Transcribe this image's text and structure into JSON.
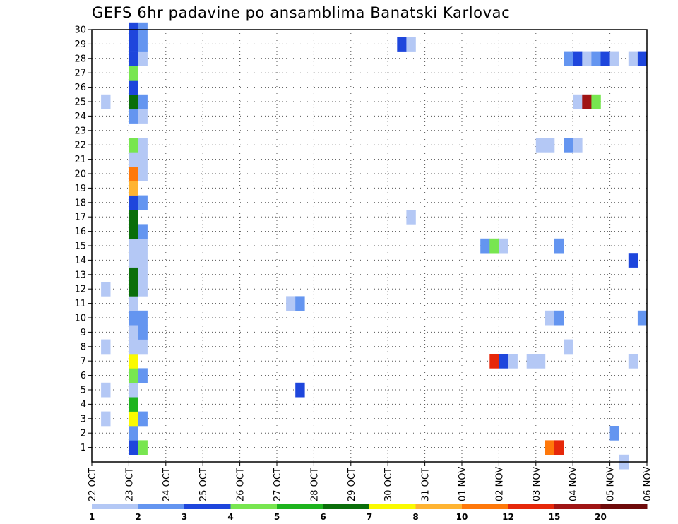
{
  "chart_data": {
    "type": "heatmap",
    "title": "GEFS 6hr padavine po ansamblima Banatski Karlovac",
    "x_tick_labels": [
      "22 OCT",
      "23 OCT",
      "24 OCT",
      "25 OCT",
      "26 OCT",
      "27 OCT",
      "28 OCT",
      "29 OCT",
      "30 OCT",
      "31 OCT",
      "01 NOV",
      "02 NOV",
      "03 NOV",
      "04 NOV",
      "05 NOV",
      "06 NOV"
    ],
    "x_range_days": [
      0,
      15
    ],
    "y_tick_labels": [
      "1",
      "2",
      "3",
      "4",
      "5",
      "6",
      "7",
      "8",
      "9",
      "10",
      "11",
      "12",
      "13",
      "14",
      "15",
      "16",
      "17",
      "18",
      "19",
      "20",
      "21",
      "22",
      "23",
      "24",
      "25",
      "26",
      "27",
      "28",
      "29",
      "30"
    ],
    "y_range": [
      0,
      30
    ],
    "grid": true,
    "colorbar": {
      "labels": [
        "1",
        "2",
        "3",
        "4",
        "5",
        "6",
        "7",
        "8",
        "10",
        "12",
        "15",
        "20"
      ],
      "colors": [
        "#b4c8f5",
        "#6495f0",
        "#1e46dc",
        "#78e650",
        "#1eb41e",
        "#0a6e0a",
        "#fafa00",
        "#ffb432",
        "#ff780a",
        "#e6280a",
        "#a01414",
        "#6e0a0a"
      ]
    },
    "cells": [
      {
        "x": 1.0,
        "y": 1,
        "c": 3
      },
      {
        "x": 1.25,
        "y": 1,
        "c": 4
      },
      {
        "x": 1.0,
        "y": 2,
        "c": 2
      },
      {
        "x": 1.0,
        "y": 3,
        "c": 7
      },
      {
        "x": 1.25,
        "y": 3,
        "c": 2
      },
      {
        "x": 1.0,
        "y": 4,
        "c": 5
      },
      {
        "x": 1.0,
        "y": 5,
        "c": 1
      },
      {
        "x": 1.0,
        "y": 6,
        "c": 4
      },
      {
        "x": 1.25,
        "y": 6,
        "c": 2
      },
      {
        "x": 1.0,
        "y": 7,
        "c": 7
      },
      {
        "x": 1.0,
        "y": 8,
        "c": 1
      },
      {
        "x": 1.25,
        "y": 8,
        "c": 1
      },
      {
        "x": 1.0,
        "y": 9,
        "c": 1
      },
      {
        "x": 1.25,
        "y": 9,
        "c": 2
      },
      {
        "x": 1.0,
        "y": 10,
        "c": 2
      },
      {
        "x": 1.25,
        "y": 10,
        "c": 2
      },
      {
        "x": 1.0,
        "y": 11,
        "c": 1
      },
      {
        "x": 1.0,
        "y": 12,
        "c": 6
      },
      {
        "x": 1.25,
        "y": 12,
        "c": 1
      },
      {
        "x": 1.0,
        "y": 13,
        "c": 6
      },
      {
        "x": 1.25,
        "y": 13,
        "c": 1
      },
      {
        "x": 1.0,
        "y": 14,
        "c": 1
      },
      {
        "x": 1.25,
        "y": 14,
        "c": 1
      },
      {
        "x": 1.0,
        "y": 15,
        "c": 1
      },
      {
        "x": 1.25,
        "y": 15,
        "c": 1
      },
      {
        "x": 1.0,
        "y": 16,
        "c": 6
      },
      {
        "x": 1.25,
        "y": 16,
        "c": 2
      },
      {
        "x": 1.0,
        "y": 17,
        "c": 6
      },
      {
        "x": 1.0,
        "y": 18,
        "c": 3
      },
      {
        "x": 1.25,
        "y": 18,
        "c": 2
      },
      {
        "x": 1.0,
        "y": 19,
        "c": 8
      },
      {
        "x": 1.0,
        "y": 20,
        "c": 9
      },
      {
        "x": 1.25,
        "y": 20,
        "c": 1
      },
      {
        "x": 1.0,
        "y": 21,
        "c": 1
      },
      {
        "x": 1.25,
        "y": 21,
        "c": 1
      },
      {
        "x": 1.0,
        "y": 22,
        "c": 4
      },
      {
        "x": 1.25,
        "y": 22,
        "c": 1
      },
      {
        "x": 1.0,
        "y": 24,
        "c": 2
      },
      {
        "x": 1.25,
        "y": 24,
        "c": 1
      },
      {
        "x": 1.0,
        "y": 25,
        "c": 6
      },
      {
        "x": 1.25,
        "y": 25,
        "c": 2
      },
      {
        "x": 1.0,
        "y": 26,
        "c": 3
      },
      {
        "x": 1.0,
        "y": 27,
        "c": 4
      },
      {
        "x": 1.0,
        "y": 28,
        "c": 3
      },
      {
        "x": 1.25,
        "y": 28,
        "c": 1
      },
      {
        "x": 1.0,
        "y": 29,
        "c": 3
      },
      {
        "x": 1.25,
        "y": 29,
        "c": 2
      },
      {
        "x": 1.0,
        "y": 30,
        "c": 3
      },
      {
        "x": 1.25,
        "y": 30,
        "c": 2
      },
      {
        "x": 0.25,
        "y": 3,
        "c": 1
      },
      {
        "x": 0.25,
        "y": 5,
        "c": 1
      },
      {
        "x": 0.25,
        "y": 8,
        "c": 1
      },
      {
        "x": 0.25,
        "y": 12,
        "c": 1
      },
      {
        "x": 0.25,
        "y": 25,
        "c": 1
      },
      {
        "x": 5.25,
        "y": 11,
        "c": 1
      },
      {
        "x": 5.5,
        "y": 11,
        "c": 2
      },
      {
        "x": 5.5,
        "y": 5,
        "c": 3
      },
      {
        "x": 8.25,
        "y": 29,
        "c": 3
      },
      {
        "x": 8.5,
        "y": 29,
        "c": 1
      },
      {
        "x": 8.5,
        "y": 17,
        "c": 1
      },
      {
        "x": 10.5,
        "y": 15,
        "c": 2
      },
      {
        "x": 10.75,
        "y": 15,
        "c": 4
      },
      {
        "x": 11.0,
        "y": 15,
        "c": 1
      },
      {
        "x": 10.75,
        "y": 7,
        "c": 10
      },
      {
        "x": 11.0,
        "y": 7,
        "c": 3
      },
      {
        "x": 11.25,
        "y": 7,
        "c": 1
      },
      {
        "x": 11.75,
        "y": 7,
        "c": 1
      },
      {
        "x": 12.0,
        "y": 7,
        "c": 1
      },
      {
        "x": 12.0,
        "y": 22,
        "c": 1
      },
      {
        "x": 12.25,
        "y": 22,
        "c": 1
      },
      {
        "x": 12.25,
        "y": 10,
        "c": 1
      },
      {
        "x": 12.5,
        "y": 10,
        "c": 2
      },
      {
        "x": 12.25,
        "y": 1,
        "c": 9
      },
      {
        "x": 12.5,
        "y": 1,
        "c": 10
      },
      {
        "x": 12.5,
        "y": 15,
        "c": 2
      },
      {
        "x": 12.75,
        "y": 28,
        "c": 2
      },
      {
        "x": 13.0,
        "y": 28,
        "c": 3
      },
      {
        "x": 13.25,
        "y": 28,
        "c": 1
      },
      {
        "x": 13.5,
        "y": 28,
        "c": 2
      },
      {
        "x": 13.75,
        "y": 28,
        "c": 3
      },
      {
        "x": 14.0,
        "y": 28,
        "c": 1
      },
      {
        "x": 14.5,
        "y": 28,
        "c": 1
      },
      {
        "x": 14.75,
        "y": 28,
        "c": 3
      },
      {
        "x": 12.75,
        "y": 22,
        "c": 2
      },
      {
        "x": 13.0,
        "y": 22,
        "c": 1
      },
      {
        "x": 12.75,
        "y": 8,
        "c": 1
      },
      {
        "x": 13.0,
        "y": 25,
        "c": 1
      },
      {
        "x": 13.25,
        "y": 25,
        "c": 11
      },
      {
        "x": 13.5,
        "y": 25,
        "c": 4
      },
      {
        "x": 14.0,
        "y": 2,
        "c": 2
      },
      {
        "x": 14.25,
        "y": 0,
        "c": 1
      },
      {
        "x": 14.5,
        "y": 14,
        "c": 3
      },
      {
        "x": 14.5,
        "y": 7,
        "c": 1
      },
      {
        "x": 14.75,
        "y": 10,
        "c": 2
      }
    ]
  }
}
